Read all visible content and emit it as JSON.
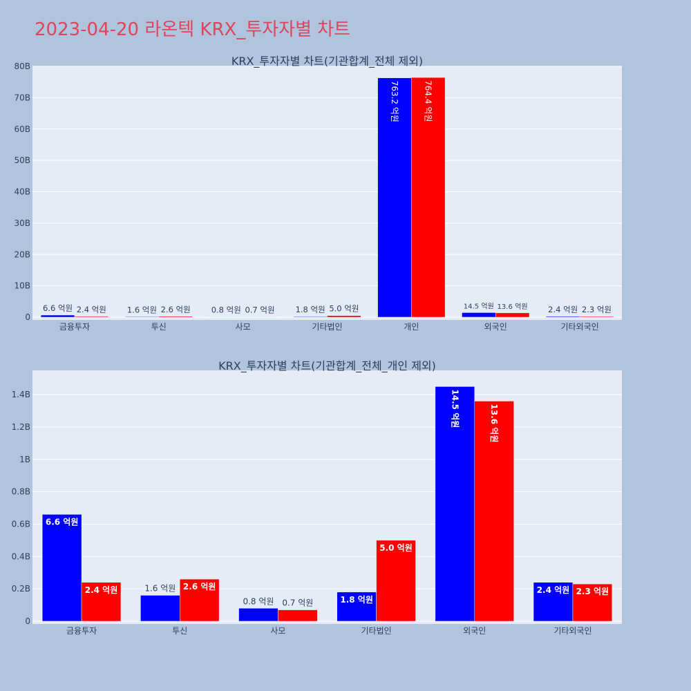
{
  "page": {
    "title": "2023-04-20 라온텍 KRX_투자자별 차트"
  },
  "colors": {
    "buy": "#0000ff",
    "sell": "#ff0000",
    "plot_bg": "#e5ecf6",
    "grid": "#ffffff",
    "page_bg": "#b0c4de",
    "title": "#e0445a"
  },
  "chart_data": [
    {
      "type": "bar",
      "title": "KRX_투자자별 차트(기관합계_전체 제외)",
      "categories": [
        "금융투자",
        "투신",
        "사모",
        "기타법인",
        "개인",
        "외국인",
        "기타외국인"
      ],
      "series": [
        {
          "values": [
            660000000,
            160000000,
            80000000,
            180000000,
            76320000000,
            1450000000,
            240000000
          ],
          "labels": [
            "6.6 억원",
            "1.6 억원",
            "0.8 억원",
            "1.8 억원",
            "763.2 억원",
            "14.5 억원",
            "2.4 억원"
          ]
        },
        {
          "values": [
            240000000,
            260000000,
            70000000,
            500000000,
            76440000000,
            1360000000,
            230000000
          ],
          "labels": [
            "2.4 억원",
            "2.6 억원",
            "0.7 억원",
            "5.0 억원",
            "764.4 억원",
            "13.6 억원",
            "2.3 억원"
          ]
        }
      ],
      "ylim": [
        0,
        80000000000
      ],
      "yticks": [
        0,
        10000000000,
        20000000000,
        30000000000,
        40000000000,
        50000000000,
        60000000000,
        70000000000,
        80000000000
      ],
      "ytick_labels": [
        "0",
        "10B",
        "20B",
        "30B",
        "40B",
        "50B",
        "60B",
        "70B",
        "80B"
      ],
      "grid": true
    },
    {
      "type": "bar",
      "title": "KRX_투자자별 차트(기관합계_전체_개인 제외)",
      "categories": [
        "금융투자",
        "투신",
        "사모",
        "기타법인",
        "외국인",
        "기타외국인"
      ],
      "series": [
        {
          "values": [
            660000000,
            160000000,
            80000000,
            180000000,
            1450000000,
            240000000
          ],
          "labels": [
            "6.6 억원",
            "1.6 억원",
            "0.8 억원",
            "1.8 억원",
            "14.5 억원",
            "2.4 억원"
          ]
        },
        {
          "values": [
            240000000,
            260000000,
            70000000,
            500000000,
            1360000000,
            230000000
          ],
          "labels": [
            "2.4 억원",
            "2.6 억원",
            "0.7 억원",
            "5.0 억원",
            "13.6 억원",
            "2.3 억원"
          ]
        }
      ],
      "ylim": [
        0,
        1550000000
      ],
      "yticks": [
        0,
        200000000,
        400000000,
        600000000,
        800000000,
        1000000000,
        1200000000,
        1400000000
      ],
      "ytick_labels": [
        "0",
        "0.2B",
        "0.4B",
        "0.6B",
        "0.8B",
        "1B",
        "1.2B",
        "1.4B"
      ],
      "grid": true
    }
  ]
}
